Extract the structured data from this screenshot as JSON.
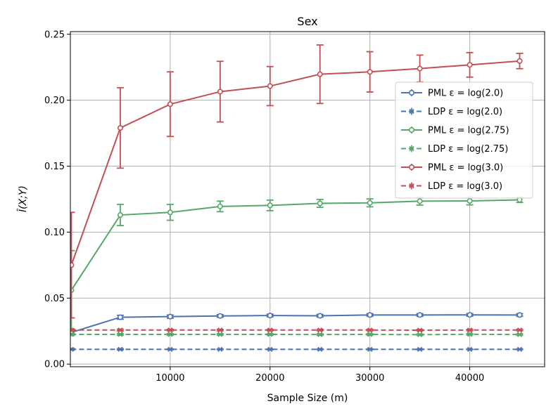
{
  "chart_data": {
    "type": "line",
    "title": "Sex",
    "xlabel": "Sample Size (m)",
    "ylabel": "Î(X;Y)",
    "xlim": [
      0,
      47500
    ],
    "ylim": [
      -0.002,
      0.252
    ],
    "xticks": [
      10000,
      20000,
      30000,
      40000
    ],
    "yticks": [
      0.0,
      0.05,
      0.1,
      0.15,
      0.2,
      0.25
    ],
    "ytick_labels": [
      "0.00",
      "0.05",
      "0.10",
      "0.15",
      "0.20",
      "0.25"
    ],
    "grid": true,
    "legend_position": "right",
    "x": [
      100,
      5000,
      10000,
      15000,
      20000,
      25000,
      30000,
      35000,
      40000,
      45000
    ],
    "series": [
      {
        "name": "PML ε = log(2.0)",
        "color": "#4c72b0",
        "style": "solid",
        "marker": "circle",
        "values": [
          0.024,
          0.0355,
          0.036,
          0.0365,
          0.0368,
          0.0366,
          0.0372,
          0.0372,
          0.0373,
          0.0372
        ],
        "errors": [
          0.002,
          0.0015,
          0.0012,
          0.001,
          0.001,
          0.001,
          0.001,
          0.001,
          0.001,
          0.001
        ]
      },
      {
        "name": "LDP ε = log(2.0)",
        "color": "#4c72b0",
        "style": "dashed",
        "marker": "x",
        "values": [
          0.0112,
          0.0112,
          0.0112,
          0.0112,
          0.0112,
          0.0112,
          0.0112,
          0.0112,
          0.0112,
          0.0112
        ],
        "errors": [
          0.0006,
          0.0004,
          0.0003,
          0.0003,
          0.0003,
          0.0003,
          0.0003,
          0.0003,
          0.0003,
          0.0003
        ]
      },
      {
        "name": "PML ε = log(2.75)",
        "color": "#55a868",
        "style": "solid",
        "marker": "circle",
        "values": [
          0.056,
          0.113,
          0.115,
          0.1195,
          0.1203,
          0.1218,
          0.1222,
          0.1235,
          0.1237,
          0.1245
        ],
        "errors": [
          0.03,
          0.008,
          0.006,
          0.004,
          0.004,
          0.003,
          0.003,
          0.003,
          0.003,
          0.002
        ]
      },
      {
        "name": "LDP ε = log(2.75)",
        "color": "#55a868",
        "style": "dashed",
        "marker": "x",
        "values": [
          0.0225,
          0.0225,
          0.0225,
          0.0225,
          0.0225,
          0.0224,
          0.0225,
          0.0223,
          0.0226,
          0.0224
        ],
        "errors": [
          0.0008,
          0.0006,
          0.0005,
          0.0005,
          0.0005,
          0.0005,
          0.0005,
          0.0005,
          0.0005,
          0.0005
        ]
      },
      {
        "name": "PML ε = log(3.0)",
        "color": "#c44e52",
        "style": "solid",
        "marker": "circle",
        "values": [
          0.075,
          0.179,
          0.197,
          0.2065,
          0.2107,
          0.2197,
          0.2215,
          0.224,
          0.2268,
          0.2297
        ],
        "errors": [
          0.04,
          0.0305,
          0.0245,
          0.023,
          0.0148,
          0.0222,
          0.0153,
          0.0102,
          0.0093,
          0.0058
        ]
      },
      {
        "name": "LDP ε = log(3.0)",
        "color": "#c44e52",
        "style": "dashed",
        "marker": "x",
        "values": [
          0.0258,
          0.0258,
          0.0258,
          0.0258,
          0.0258,
          0.0258,
          0.0258,
          0.0257,
          0.0258,
          0.0258
        ],
        "errors": [
          0.0008,
          0.0006,
          0.0005,
          0.0005,
          0.0005,
          0.0005,
          0.0005,
          0.0005,
          0.0005,
          0.0005
        ]
      }
    ]
  }
}
